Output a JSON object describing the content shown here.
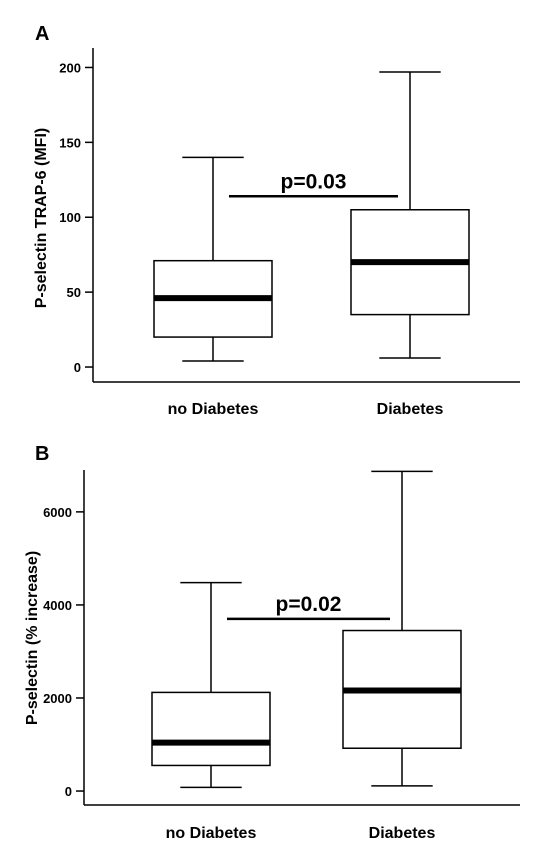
{
  "chart_data": [
    {
      "type": "box",
      "panel": "A",
      "ylabel": "P-selectin TRAP-6 (MFI)",
      "ylim": [
        -10,
        213
      ],
      "yticks": [
        0,
        50,
        100,
        150,
        200
      ],
      "categories": [
        "no Diabetes",
        "Diabetes"
      ],
      "boxes": [
        {
          "category": "no Diabetes",
          "min": 4,
          "q1": 20,
          "median": 46,
          "q3": 71,
          "max": 140
        },
        {
          "category": "Diabetes",
          "min": 6,
          "q1": 35,
          "median": 70,
          "q3": 105,
          "max": 197
        }
      ],
      "annotation": {
        "text": "p=0.03",
        "x_from": "no Diabetes",
        "x_to": "Diabetes",
        "y": 114
      }
    },
    {
      "type": "box",
      "panel": "B",
      "ylabel": "P-selectin (% increase)",
      "ylim": [
        -300,
        6900
      ],
      "yticks": [
        0,
        2000,
        4000,
        6000
      ],
      "categories": [
        "no Diabetes",
        "Diabetes"
      ],
      "boxes": [
        {
          "category": "no Diabetes",
          "min": 80,
          "q1": 550,
          "median": 1040,
          "q3": 2120,
          "max": 4480
        },
        {
          "category": "Diabetes",
          "min": 110,
          "q1": 920,
          "median": 2160,
          "q3": 3450,
          "max": 6870
        }
      ],
      "annotation": {
        "text": "p=0.02",
        "x_from": "no Diabetes",
        "x_to": "Diabetes",
        "y": 3700
      }
    }
  ]
}
